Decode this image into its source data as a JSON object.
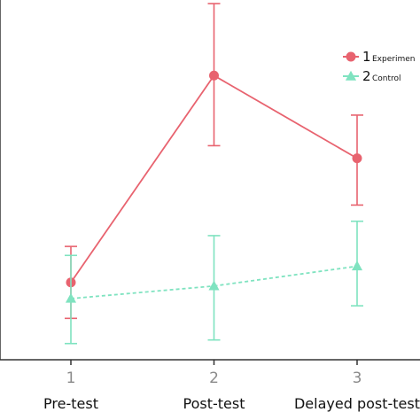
{
  "chart_data": {
    "type": "line",
    "x": [
      1,
      2,
      3
    ],
    "xticks": [
      "1",
      "2",
      "3"
    ],
    "categories": [
      "Pre-test",
      "Post-test",
      "Delayed post-test"
    ],
    "ylim": [
      0,
      10
    ],
    "grid": false,
    "legend_position": "top-right",
    "series": [
      {
        "name": "Experimental",
        "legend_number": "1",
        "legend_text": "Experimen",
        "color": "#e8636f",
        "marker": "circle",
        "line_style": "solid",
        "values": [
          2.15,
          7.9,
          5.6
        ],
        "error_low": [
          1.15,
          5.95,
          4.3
        ],
        "error_high": [
          3.15,
          9.9,
          6.8
        ]
      },
      {
        "name": "Control",
        "legend_number": "2",
        "legend_text": "Control",
        "color": "#7fe3c0",
        "marker": "triangle",
        "line_style": "dashed",
        "values": [
          1.7,
          2.05,
          2.6
        ],
        "error_low": [
          0.45,
          0.55,
          1.5
        ],
        "error_high": [
          2.9,
          3.45,
          3.85
        ]
      }
    ]
  }
}
